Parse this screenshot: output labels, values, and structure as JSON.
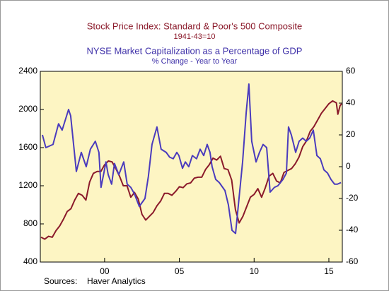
{
  "chart_data": {
    "type": "line",
    "xlim": [
      1995.7,
      2015.9
    ],
    "xticks": [
      {
        "value": 2000,
        "label": "00"
      },
      {
        "value": 2005,
        "label": "05"
      },
      {
        "value": 2010,
        "label": "10"
      },
      {
        "value": 2015,
        "label": "15"
      }
    ],
    "ylim": [
      400,
      2400
    ],
    "yticks": [
      400,
      800,
      1200,
      1600,
      2000,
      2400
    ],
    "y2lim": [
      -60,
      60
    ],
    "y2ticks": [
      -60,
      -40,
      -20,
      0,
      20,
      40,
      60
    ],
    "source_label": "Sources:",
    "source": "Haver Analytics",
    "series": [
      {
        "name": "Stock Price Index: Standard & Poor's 500 Composite",
        "subtitle": "1941-43=10",
        "color": "#8b1a2b",
        "axis": "y",
        "x": [
          1995.75,
          1996.0,
          1996.25,
          1996.5,
          1996.75,
          1997.0,
          1997.25,
          1997.5,
          1997.75,
          1998.0,
          1998.25,
          1998.5,
          1998.75,
          1999.0,
          1999.25,
          1999.5,
          1999.75,
          2000.0,
          2000.25,
          2000.5,
          2000.75,
          2001.0,
          2001.25,
          2001.5,
          2001.75,
          2002.0,
          2002.25,
          2002.5,
          2002.75,
          2003.0,
          2003.25,
          2003.5,
          2003.75,
          2004.0,
          2004.25,
          2004.5,
          2004.75,
          2005.0,
          2005.25,
          2005.5,
          2005.75,
          2006.0,
          2006.25,
          2006.5,
          2006.75,
          2007.0,
          2007.25,
          2007.5,
          2007.75,
          2008.0,
          2008.25,
          2008.5,
          2008.75,
          2009.0,
          2009.25,
          2009.5,
          2009.75,
          2010.0,
          2010.25,
          2010.5,
          2010.75,
          2011.0,
          2011.25,
          2011.5,
          2011.75,
          2012.0,
          2012.25,
          2012.5,
          2012.75,
          2013.0,
          2013.25,
          2013.5,
          2013.75,
          2014.0,
          2014.25,
          2014.5,
          2014.75,
          2015.0,
          2015.25,
          2015.5,
          2015.6,
          2015.75,
          2015.85
        ],
        "values": [
          660,
          640,
          670,
          660,
          730,
          780,
          850,
          930,
          960,
          1050,
          1120,
          1100,
          1050,
          1240,
          1330,
          1350,
          1350,
          1420,
          1460,
          1450,
          1380,
          1300,
          1200,
          1200,
          1080,
          1130,
          1060,
          900,
          840,
          880,
          920,
          990,
          1040,
          1120,
          1120,
          1100,
          1140,
          1190,
          1180,
          1220,
          1230,
          1280,
          1290,
          1290,
          1370,
          1420,
          1490,
          1470,
          1510,
          1380,
          1370,
          1260,
          950,
          810,
          880,
          980,
          1080,
          1110,
          1170,
          1080,
          1180,
          1300,
          1330,
          1250,
          1230,
          1340,
          1360,
          1380,
          1430,
          1500,
          1610,
          1670,
          1770,
          1820,
          1890,
          1960,
          2010,
          2060,
          2090,
          2070,
          1950,
          2040,
          2060
        ]
      },
      {
        "name": "NYSE Market Capitalization as a Percentage of GDP",
        "subtitle": "% Change - Year to Year",
        "color": "#4a3bbd",
        "axis": "y2",
        "x": [
          1995.84,
          1996.07,
          1996.55,
          1996.92,
          1997.16,
          1997.59,
          1997.73,
          1998.11,
          1998.44,
          1998.77,
          1999.05,
          1999.38,
          1999.62,
          1999.76,
          1999.95,
          2000.09,
          2000.24,
          2000.47,
          2000.66,
          2000.95,
          2001.28,
          2001.51,
          2001.75,
          2001.99,
          2002.32,
          2002.7,
          2002.93,
          2003.17,
          2003.5,
          2003.78,
          2004.12,
          2004.35,
          2004.59,
          2004.83,
          2004.97,
          2005.21,
          2005.4,
          2005.63,
          2005.87,
          2006.15,
          2006.39,
          2006.63,
          2006.86,
          2007.05,
          2007.19,
          2007.43,
          2007.67,
          2008.05,
          2008.28,
          2008.52,
          2008.76,
          2008.99,
          2009.23,
          2009.47,
          2009.65,
          2009.84,
          2010.13,
          2010.36,
          2010.6,
          2010.84,
          2011.07,
          2011.36,
          2011.59,
          2011.93,
          2012.16,
          2012.3,
          2012.49,
          2012.78,
          2013.01,
          2013.25,
          2013.49,
          2013.72,
          2013.96,
          2014.2,
          2014.43,
          2014.67,
          2014.91,
          2015.14,
          2015.38,
          2015.57,
          2015.81
        ],
        "values": [
          20,
          12,
          14,
          27,
          23,
          36,
          32,
          -3,
          9,
          0,
          11,
          16,
          9,
          -13,
          -4,
          3,
          -5,
          -11,
          2,
          -5,
          3,
          -11,
          -13,
          -17,
          -25,
          -20,
          -6,
          14,
          25,
          11,
          9,
          6,
          5,
          9,
          7,
          -1,
          3,
          0,
          7,
          5,
          11,
          7,
          14,
          9,
          0,
          -8,
          -10,
          -15,
          -24,
          -40,
          -42,
          -20,
          3,
          34,
          52,
          16,
          3,
          9,
          14,
          12,
          -16,
          -13,
          -12,
          -8,
          -4,
          25,
          20,
          9,
          16,
          18,
          16,
          18,
          23,
          7,
          5,
          -2,
          -4,
          -8,
          -11,
          -11,
          -10
        ]
      }
    ]
  }
}
